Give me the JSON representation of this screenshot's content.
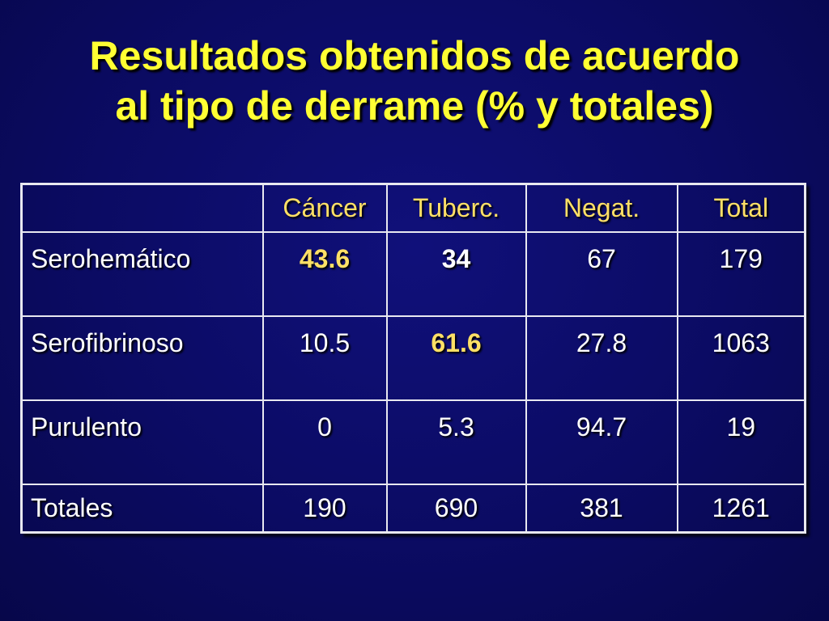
{
  "slide": {
    "title_line1": "Resultados obtenidos de acuerdo",
    "title_line2": "al tipo de derrame (% y totales)"
  },
  "table": {
    "columns": [
      "",
      "Cáncer",
      "Tuberc.",
      "Negat.",
      "Total"
    ],
    "rows": [
      {
        "label": "Serohemático",
        "values": [
          "43.6",
          "34",
          "67",
          "179"
        ]
      },
      {
        "label": "Serofibrinoso",
        "values": [
          "10.5",
          "61.6",
          "27.8",
          "1063"
        ]
      },
      {
        "label": "Purulento",
        "values": [
          "0",
          "5.3",
          "94.7",
          "19"
        ]
      },
      {
        "label": "Totales",
        "values": [
          "190",
          "690",
          "381",
          "1261"
        ]
      }
    ],
    "highlight_color": "#ffe066",
    "title_color": "#ffff33",
    "background_color": "#0b0b63"
  }
}
